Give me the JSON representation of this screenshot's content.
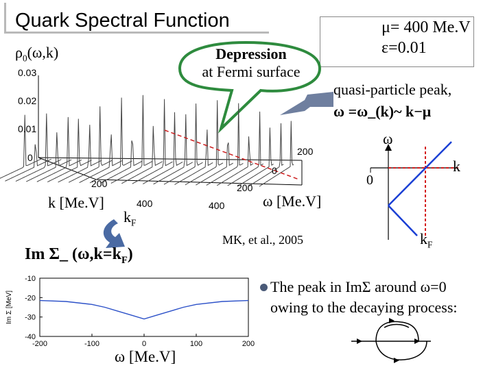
{
  "title": "Quark Spectral Function",
  "params": {
    "mu": "μ= 400 Me.V",
    "eps": "ε=0.01"
  },
  "rho_label": "ρ",
  "rho_sub": "0",
  "rho_args": "(ω,k)",
  "depression": {
    "line1": "Depression",
    "line2": "at Fermi surface"
  },
  "plot3d": {
    "z_ticks": [
      "0.03",
      "0.02",
      "0.01",
      "0"
    ],
    "k_ticks": [
      "200",
      "400"
    ],
    "w_ticks": [
      "200",
      "0",
      "200",
      "400"
    ]
  },
  "k_axis_label": "k [Me.V]",
  "kf_label": "k",
  "kf_sub": "F",
  "w_axis_label": "ω [Me.V]",
  "citation": "MK, et al., 2005",
  "quasi": {
    "line1": "quasi-particle peak,",
    "line2": "ω =ω_(k)~ k−μ"
  },
  "dispersion": {
    "omega": "ω",
    "k": "k",
    "zero": "0",
    "kf": "k",
    "kf_sub": "F"
  },
  "im_sigma": {
    "label": "Im Σ_ (ω,k=k",
    "sub": "F",
    "close": ")"
  },
  "chart_data": {
    "type": "line",
    "title": "",
    "xlabel": "ω [Me.V]",
    "ylabel": "Im Σ [MeV]",
    "xlim": [
      -200,
      200
    ],
    "ylim": [
      -40,
      -10
    ],
    "x_ticks": [
      -200,
      -100,
      0,
      100,
      200
    ],
    "y_ticks": [
      -10,
      -20,
      -30,
      -40
    ],
    "x_tick_labels": [
      "-200",
      "-100",
      "0",
      "100",
      "200"
    ],
    "y_tick_labels": [
      "-10",
      "-20",
      "-30",
      "-40"
    ],
    "series": [
      {
        "name": "Im Sigma",
        "x": [
          -200,
          -150,
          -100,
          -75,
          -50,
          -25,
          0,
          25,
          50,
          75,
          100,
          150,
          200
        ],
        "y": [
          -21.5,
          -22,
          -23.5,
          -25,
          -27,
          -29,
          -31,
          -29,
          -27,
          -25,
          -23.5,
          -22,
          -21.5
        ]
      }
    ]
  },
  "peak_note": {
    "line1": "The peak in ImΣ around ω=0",
    "line2": "owing to the decaying process:"
  }
}
